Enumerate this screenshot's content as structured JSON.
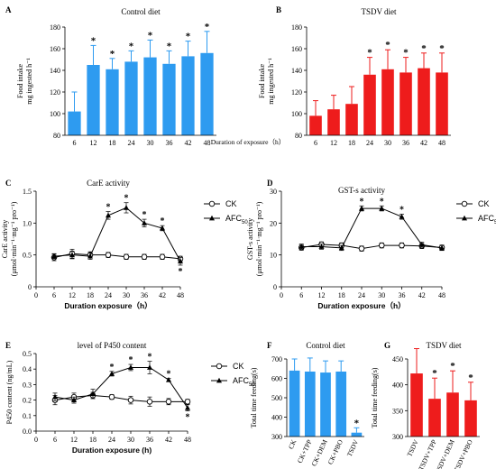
{
  "figure": {
    "shared_xlabel_top": "Duration of exposure（h）"
  },
  "chart_data": [
    {
      "panel": "A",
      "type": "bar",
      "title": "Control diet",
      "ylabel_lines": [
        "Food intake",
        "mg ingested h⁻¹"
      ],
      "xlabel": "",
      "categories": [
        "6",
        "12",
        "18",
        "24",
        "30",
        "36",
        "42",
        "48"
      ],
      "ylim": [
        80,
        180
      ],
      "yticks": [
        80,
        100,
        120,
        140,
        160,
        180
      ],
      "series": [
        {
          "values": [
            102,
            145,
            141,
            148,
            152,
            146,
            153,
            156
          ],
          "errors": [
            18,
            18,
            10,
            10,
            16,
            12,
            14,
            20
          ],
          "color": "#2e9bf0",
          "significant": [
            false,
            true,
            true,
            true,
            true,
            true,
            true,
            true
          ]
        }
      ],
      "annotation": "*",
      "grid": false
    },
    {
      "panel": "B",
      "type": "bar",
      "title": "TSDV diet",
      "ylabel_lines": [
        "Food intake",
        "mg ingested h⁻¹"
      ],
      "xlabel": "",
      "categories": [
        "6",
        "12",
        "18",
        "24",
        "30",
        "36",
        "42",
        "48"
      ],
      "ylim": [
        80,
        180
      ],
      "yticks": [
        80,
        100,
        120,
        140,
        160,
        180
      ],
      "series": [
        {
          "values": [
            98,
            104,
            109,
            136,
            141,
            138,
            142,
            138
          ],
          "errors": [
            14,
            13,
            16,
            16,
            18,
            14,
            14,
            18
          ],
          "color": "#ee1c1c",
          "significant": [
            false,
            false,
            false,
            true,
            true,
            true,
            true,
            true
          ]
        }
      ],
      "annotation": "*",
      "grid": false
    },
    {
      "panel": "C",
      "type": "line",
      "title": "CarE activity",
      "ylabel_lines": [
        "CarE activity",
        "(μmol·min⁻¹·mg⁻¹ pro⁻¹)"
      ],
      "xlabel": "Duration exposure（h）",
      "x": [
        6,
        12,
        18,
        24,
        30,
        36,
        42,
        48
      ],
      "xticks": [
        0,
        6,
        12,
        18,
        24,
        30,
        36,
        42,
        48
      ],
      "xlim": [
        0,
        48
      ],
      "ylim": [
        0,
        1.5
      ],
      "yticks": [
        0,
        0.5,
        1.0,
        1.5
      ],
      "ytick_labels": [
        "0",
        "0.5",
        "1.0",
        "1.5"
      ],
      "series": [
        {
          "name": "CK",
          "marker": "circle",
          "values": [
            0.46,
            0.52,
            0.5,
            0.5,
            0.47,
            0.47,
            0.47,
            0.44
          ],
          "errors": [
            0.05,
            0.07,
            0.05,
            0.04,
            0.04,
            0.04,
            0.04,
            0.04
          ],
          "significant": [
            false,
            false,
            false,
            false,
            false,
            false,
            false,
            false
          ]
        },
        {
          "name": "AFC",
          "name_sub": "50",
          "marker": "triangle",
          "values": [
            0.48,
            0.5,
            0.48,
            1.12,
            1.24,
            1.0,
            0.92,
            0.4
          ],
          "errors": [
            0.04,
            0.06,
            0.05,
            0.06,
            0.08,
            0.06,
            0.04,
            0.06
          ],
          "significant": [
            false,
            false,
            false,
            true,
            true,
            true,
            true,
            true
          ]
        }
      ],
      "legend": "right",
      "annotation": "*",
      "grid": false
    },
    {
      "panel": "D",
      "type": "line",
      "title": "GST-s activity",
      "ylabel_lines": [
        "GST-s activity",
        "(μmol·min⁻¹·mg⁻¹ pro⁻¹)"
      ],
      "xlabel": "Duration exposure（h）",
      "x": [
        6,
        12,
        18,
        24,
        30,
        36,
        42,
        48
      ],
      "xticks": [
        0,
        6,
        12,
        18,
        24,
        30,
        36,
        42,
        48
      ],
      "xlim": [
        0,
        48
      ],
      "ylim": [
        0,
        30
      ],
      "yticks": [
        0,
        10,
        20,
        30
      ],
      "ytick_labels": [
        "0",
        "10",
        "20",
        "30"
      ],
      "series": [
        {
          "name": "CK",
          "marker": "circle",
          "values": [
            12.3,
            13.3,
            13.0,
            12.0,
            13.0,
            13.0,
            12.8,
            12.3
          ],
          "errors": [
            0.8,
            0.8,
            0.8,
            0.8,
            0.8,
            0.8,
            0.8,
            0.8
          ],
          "significant": [
            false,
            false,
            false,
            false,
            false,
            false,
            false,
            false
          ]
        },
        {
          "name": "AFC",
          "name_sub": "50",
          "marker": "triangle",
          "values": [
            12.6,
            12.6,
            12.2,
            24.6,
            24.6,
            22.0,
            13.2,
            12.2
          ],
          "errors": [
            0.8,
            0.8,
            0.8,
            0.8,
            0.8,
            0.8,
            0.8,
            0.8
          ],
          "significant": [
            false,
            false,
            false,
            true,
            true,
            true,
            false,
            false
          ]
        }
      ],
      "legend": "right",
      "annotation": "*",
      "grid": false
    },
    {
      "panel": "E",
      "type": "line",
      "title": "level of P450 content",
      "ylabel_lines": [
        "P450 content (ng/mL)"
      ],
      "xlabel": "Duration exposure (h)",
      "x": [
        6,
        12,
        18,
        24,
        30,
        36,
        42,
        48
      ],
      "xticks": [
        0,
        6,
        12,
        18,
        24,
        30,
        36,
        42,
        48
      ],
      "xlim": [
        0,
        48
      ],
      "ylim": [
        0,
        0.5
      ],
      "yticks": [
        0,
        0.1,
        0.2,
        0.3,
        0.4,
        0.5
      ],
      "ytick_labels": [
        "0.0",
        "0.1",
        "0.2",
        "0.3",
        "0.4",
        "0.5"
      ],
      "series": [
        {
          "name": "CK",
          "marker": "circle",
          "values": [
            0.2,
            0.22,
            0.23,
            0.22,
            0.2,
            0.19,
            0.19,
            0.19
          ],
          "errors": [
            0.03,
            0.025,
            0.02,
            0.015,
            0.025,
            0.03,
            0.02,
            0.015
          ],
          "significant": [
            false,
            false,
            false,
            false,
            false,
            false,
            false,
            false
          ]
        },
        {
          "name": "AFC",
          "name_sub": "50",
          "marker": "triangle",
          "values": [
            0.22,
            0.2,
            0.24,
            0.37,
            0.41,
            0.41,
            0.33,
            0.15
          ],
          "errors": [
            0.025,
            0.02,
            0.03,
            0.015,
            0.02,
            0.04,
            0.01,
            0.02
          ],
          "significant": [
            false,
            false,
            false,
            true,
            true,
            true,
            true,
            true
          ]
        }
      ],
      "legend": "right",
      "annotation": "*",
      "grid": false
    },
    {
      "panel": "F",
      "type": "bar",
      "title": "Control diet",
      "ylabel_lines": [
        "Total time feeding(s)"
      ],
      "xlabel": "",
      "categories": [
        "CK",
        "CK+TPP",
        "CK+DEM",
        "CK+PBO",
        "TSDV"
      ],
      "ylim": [
        300,
        700
      ],
      "yticks": [
        300,
        400,
        500,
        600,
        700
      ],
      "series": [
        {
          "values": [
            640,
            635,
            630,
            635,
            320
          ],
          "errors": [
            60,
            70,
            60,
            55,
            25
          ],
          "color": "#2e9bf0",
          "significant": [
            false,
            false,
            false,
            false,
            true
          ]
        }
      ],
      "annotation": "*",
      "grid": false
    },
    {
      "panel": "G",
      "type": "bar",
      "title": "TSDV diet",
      "ylabel_lines": [
        "Total time feeding(s)"
      ],
      "xlabel": "",
      "categories": [
        "TSDV",
        "TSDV+TPP",
        "TSDV+DEM",
        "TSDV+PBO"
      ],
      "ylim": [
        300,
        450
      ],
      "yticks": [
        300,
        350,
        400,
        450
      ],
      "series": [
        {
          "values": [
            422,
            373,
            385,
            370
          ],
          "errors": [
            48,
            40,
            42,
            35
          ],
          "color": "#ee1c1c",
          "significant": [
            false,
            true,
            true,
            true
          ]
        }
      ],
      "annotation": "*",
      "grid": false
    }
  ]
}
